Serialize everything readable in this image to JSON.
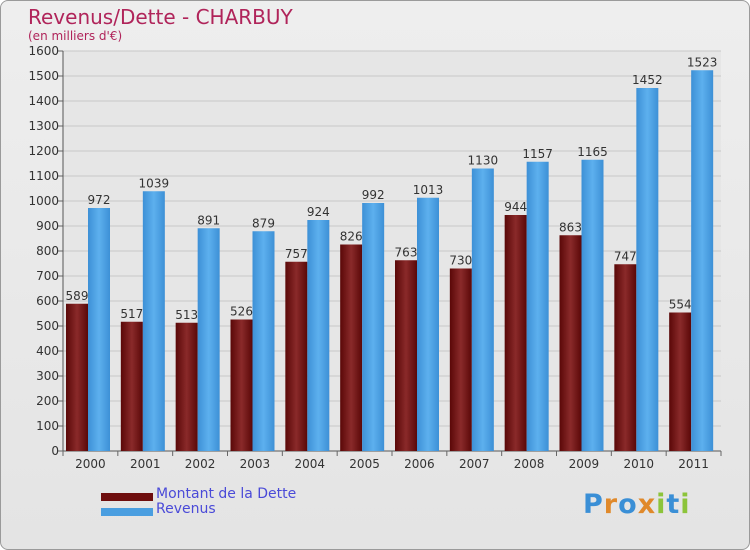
{
  "header": {
    "title": "Revenus/Dette - CHARBUY",
    "subtitle": "(en milliers d'€)"
  },
  "legend": {
    "items": [
      {
        "label": "Montant de la Dette",
        "color": "#6e0d0d"
      },
      {
        "label": "Revenus",
        "color": "#4a9ee0"
      }
    ]
  },
  "logo": {
    "text": "Proxiti"
  },
  "chart_data": {
    "type": "bar",
    "title": "Revenus/Dette - CHARBUY",
    "subtitle": "(en milliers d'€)",
    "categories": [
      "2000",
      "2001",
      "2002",
      "2003",
      "2004",
      "2005",
      "2006",
      "2007",
      "2008",
      "2009",
      "2010",
      "2011"
    ],
    "series": [
      {
        "name": "Montant de la Dette",
        "color": "#8a2020",
        "values": [
          589,
          517,
          513,
          526,
          757,
          826,
          763,
          730,
          944,
          863,
          747,
          554
        ]
      },
      {
        "name": "Revenus",
        "color": "#4a9ee0",
        "values": [
          972,
          1039,
          891,
          879,
          924,
          992,
          1013,
          1130,
          1157,
          1165,
          1452,
          1523
        ]
      }
    ],
    "ylim": [
      0,
      1600
    ],
    "yticks": [
      0,
      100,
      200,
      300,
      400,
      500,
      600,
      700,
      800,
      900,
      1000,
      1100,
      1200,
      1300,
      1400,
      1500,
      1600
    ],
    "grid": true,
    "legend_position": "bottom-left"
  }
}
